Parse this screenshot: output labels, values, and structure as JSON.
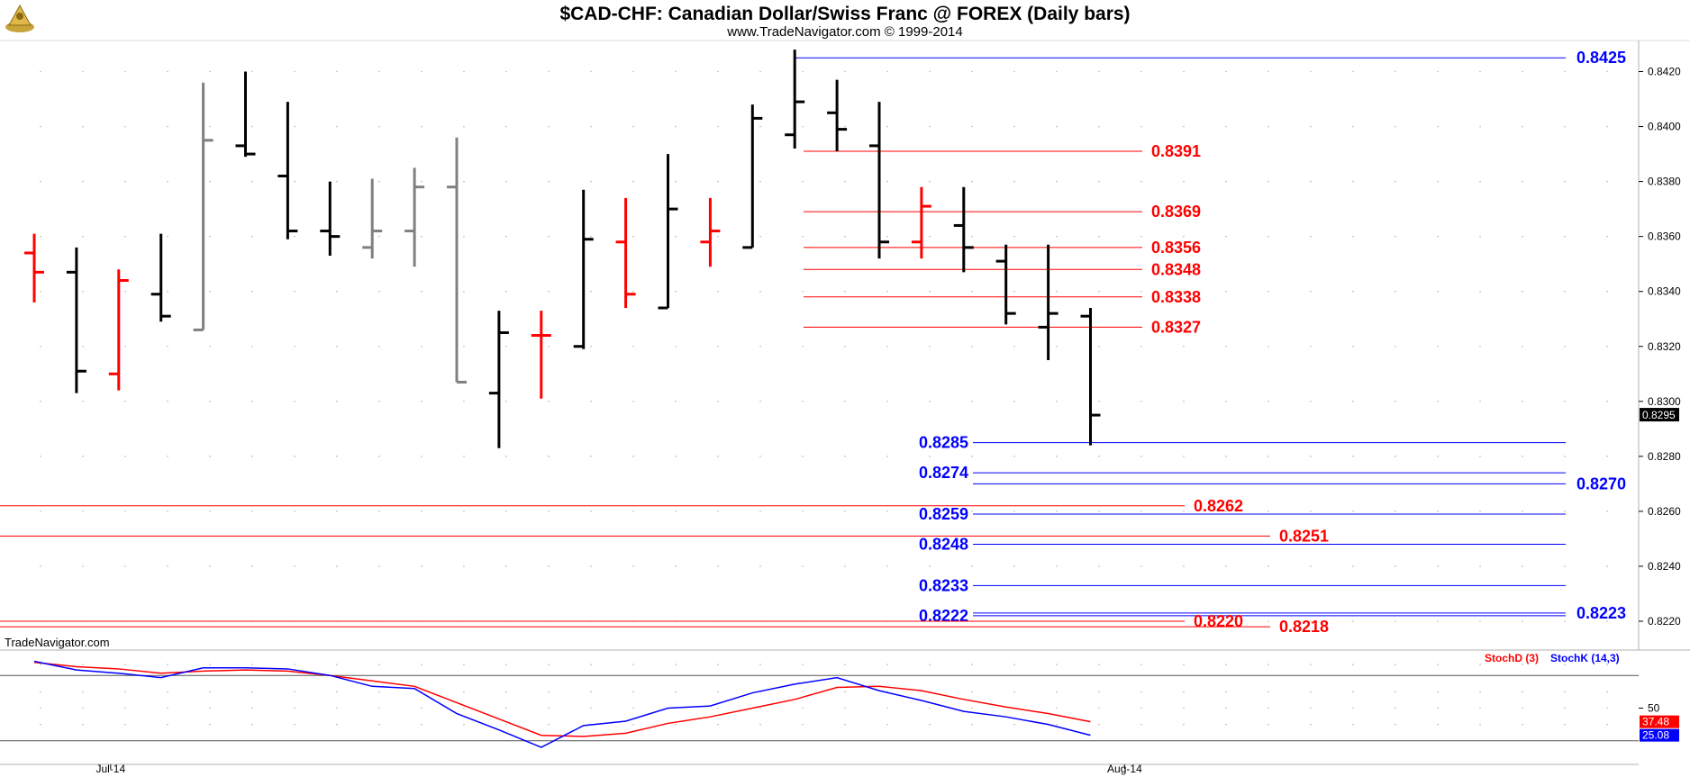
{
  "chart_data": {
    "type": "ohlc",
    "title": "$CAD-CHF:  Canadian Dollar/Swiss Franc @ FOREX  (Daily bars)",
    "subtitle": "www.TradeNavigator.com © 1999-2014",
    "watermark": "TradeNavigator.com",
    "ylim": [
      0.8212,
      0.843
    ],
    "y_ticks": [
      "0.8220",
      "0.8240",
      "0.8260",
      "0.8280",
      "0.8300",
      "0.8320",
      "0.8340",
      "0.8360",
      "0.8380",
      "0.8400",
      "0.8420"
    ],
    "x_ticks": [
      {
        "label": "Jul-14",
        "bar": 2
      },
      {
        "label": "Aug-14",
        "bar": 26
      }
    ],
    "last_price": "0.8295",
    "bar_colors": {
      "black": "#000000",
      "red": "#ff0000",
      "gray": "#808080"
    },
    "bars": [
      {
        "o": 0.8354,
        "h": 0.8361,
        "l": 0.8336,
        "c": 0.8347,
        "color": "red"
      },
      {
        "o": 0.8347,
        "h": 0.8356,
        "l": 0.8303,
        "c": 0.8311,
        "color": "black"
      },
      {
        "o": 0.831,
        "h": 0.8348,
        "l": 0.8304,
        "c": 0.8344,
        "color": "red"
      },
      {
        "o": 0.8339,
        "h": 0.8361,
        "l": 0.8329,
        "c": 0.8331,
        "color": "black"
      },
      {
        "o": 0.8326,
        "h": 0.8416,
        "l": 0.8326,
        "c": 0.8395,
        "color": "gray"
      },
      {
        "o": 0.8393,
        "h": 0.842,
        "l": 0.8389,
        "c": 0.839,
        "color": "black"
      },
      {
        "o": 0.8382,
        "h": 0.8409,
        "l": 0.8359,
        "c": 0.8362,
        "color": "black"
      },
      {
        "o": 0.8362,
        "h": 0.838,
        "l": 0.8353,
        "c": 0.836,
        "color": "black"
      },
      {
        "o": 0.8356,
        "h": 0.8381,
        "l": 0.8352,
        "c": 0.8362,
        "color": "gray"
      },
      {
        "o": 0.8362,
        "h": 0.8385,
        "l": 0.8349,
        "c": 0.8378,
        "color": "gray"
      },
      {
        "o": 0.8378,
        "h": 0.8396,
        "l": 0.8307,
        "c": 0.8307,
        "color": "gray"
      },
      {
        "o": 0.8303,
        "h": 0.8333,
        "l": 0.8283,
        "c": 0.8325,
        "color": "black"
      },
      {
        "o": 0.8324,
        "h": 0.8333,
        "l": 0.8301,
        "c": 0.8324,
        "color": "red"
      },
      {
        "o": 0.832,
        "h": 0.8377,
        "l": 0.8319,
        "c": 0.8359,
        "color": "black"
      },
      {
        "o": 0.8358,
        "h": 0.8374,
        "l": 0.8334,
        "c": 0.8339,
        "color": "red"
      },
      {
        "o": 0.8334,
        "h": 0.839,
        "l": 0.8334,
        "c": 0.837,
        "color": "black"
      },
      {
        "o": 0.8358,
        "h": 0.8374,
        "l": 0.8349,
        "c": 0.8362,
        "color": "red"
      },
      {
        "o": 0.8356,
        "h": 0.8408,
        "l": 0.8356,
        "c": 0.8403,
        "color": "black"
      },
      {
        "o": 0.8397,
        "h": 0.8428,
        "l": 0.8392,
        "c": 0.8409,
        "color": "black"
      },
      {
        "o": 0.8405,
        "h": 0.8417,
        "l": 0.8391,
        "c": 0.8399,
        "color": "black"
      },
      {
        "o": 0.8393,
        "h": 0.8409,
        "l": 0.8352,
        "c": 0.8358,
        "color": "black"
      },
      {
        "o": 0.8358,
        "h": 0.8378,
        "l": 0.8352,
        "c": 0.8371,
        "color": "red"
      },
      {
        "o": 0.8364,
        "h": 0.8378,
        "l": 0.8347,
        "c": 0.8356,
        "color": "black"
      },
      {
        "o": 0.8351,
        "h": 0.8357,
        "l": 0.8328,
        "c": 0.8332,
        "color": "black"
      },
      {
        "o": 0.8327,
        "h": 0.8357,
        "l": 0.8315,
        "c": 0.8332,
        "color": "black"
      },
      {
        "o": 0.8331,
        "h": 0.8334,
        "l": 0.8284,
        "c": 0.8295,
        "color": "black"
      }
    ],
    "blue_levels": [
      {
        "value": 0.8425,
        "label": "0.8425",
        "start_bar": 18
      },
      {
        "value": 0.8285,
        "label": "0.8285",
        "start_bar": 21
      },
      {
        "value": 0.8274,
        "label": "0.8274",
        "start_bar": 21
      },
      {
        "value": 0.827,
        "label": "0.8270",
        "start_bar": 21
      },
      {
        "value": 0.8259,
        "label": "0.8259",
        "start_bar": 21
      },
      {
        "value": 0.8248,
        "label": "0.8248",
        "start_bar": 21
      },
      {
        "value": 0.8233,
        "label": "0.8233",
        "start_bar": 21
      },
      {
        "value": 0.8223,
        "label": "0.8223",
        "start_bar": 21
      },
      {
        "value": 0.8222,
        "label": "0.8222",
        "start_bar": 21
      }
    ],
    "red_levels": [
      {
        "value": 0.8391,
        "label": "0.8391"
      },
      {
        "value": 0.8369,
        "label": "0.8369"
      },
      {
        "value": 0.8356,
        "label": "0.8356"
      },
      {
        "value": 0.8348,
        "label": "0.8348"
      },
      {
        "value": 0.8338,
        "label": "0.8338"
      },
      {
        "value": 0.8327,
        "label": "0.8327"
      },
      {
        "value": 0.8262,
        "label": "0.8262"
      },
      {
        "value": 0.8251,
        "label": "0.8251"
      },
      {
        "value": 0.822,
        "label": "0.8220"
      },
      {
        "value": 0.8218,
        "label": "0.8218"
      }
    ],
    "level_colors": {
      "blue": "#0000ff",
      "red": "#ff0000"
    },
    "stochastic": {
      "ylim": [
        0,
        100
      ],
      "y_tick_label": "50",
      "guide_levels": [
        80,
        20
      ],
      "series": [
        {
          "name": "StochD (3)",
          "color": "#ff0000",
          "last_label": "37.48",
          "values": [
            92,
            88,
            86,
            82,
            84,
            85,
            84,
            80,
            75,
            70,
            55,
            40,
            25,
            24,
            27,
            36,
            42,
            50,
            58,
            69,
            70,
            66,
            58,
            51,
            45,
            37.48
          ]
        },
        {
          "name": "StochK (14,3)",
          "color": "#0000ff",
          "last_label": "25.08",
          "values": [
            93,
            85,
            82,
            78,
            87,
            87,
            86,
            80,
            70,
            68,
            45,
            30,
            14,
            34,
            38,
            50,
            52,
            64,
            72,
            78,
            66,
            57,
            47,
            42,
            35,
            25.08
          ]
        }
      ]
    }
  }
}
